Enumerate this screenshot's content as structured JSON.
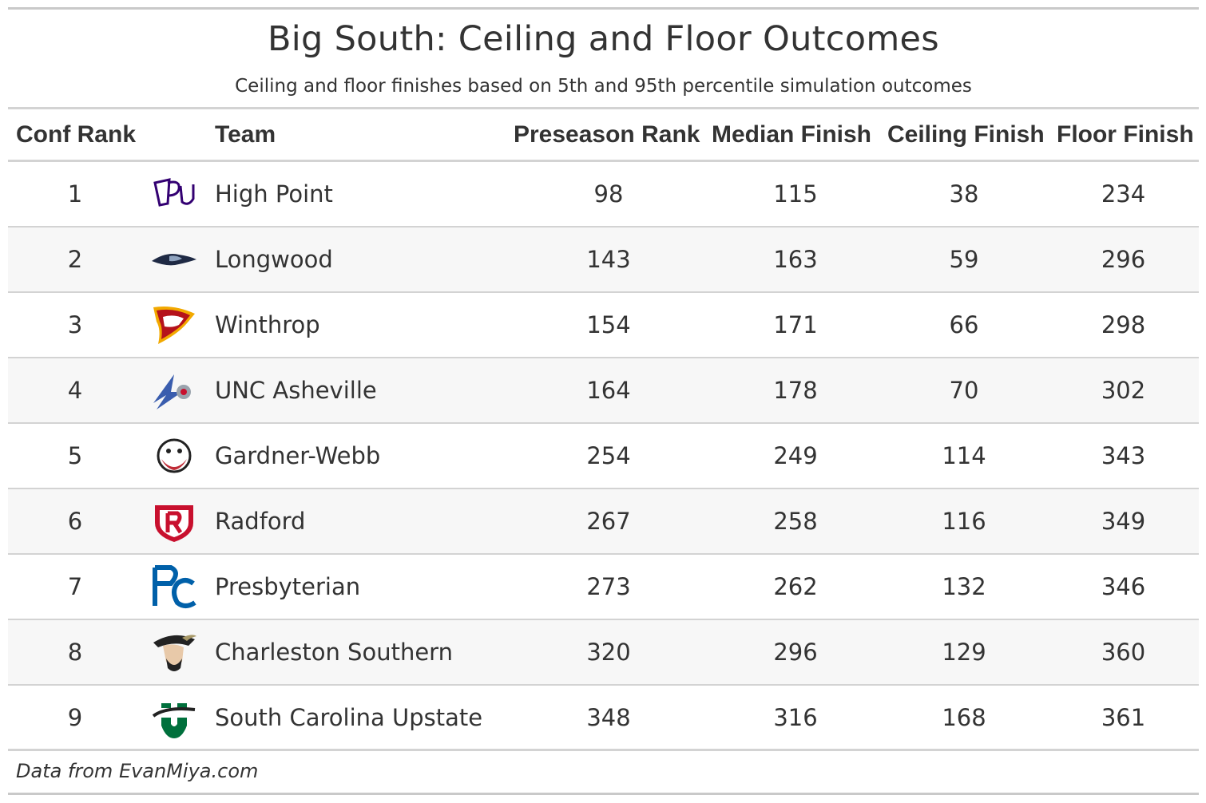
{
  "title": "Big South: Ceiling and Floor Outcomes",
  "subtitle": "Ceiling and floor finishes based on 5th and 95th percentile simulation outcomes",
  "source": "Data from EvanMiya.com",
  "columns": [
    "Conf Rank",
    "Team",
    "Preseason Rank",
    "Median Finish",
    "Ceiling Finish",
    "Floor Finish"
  ],
  "chart_data": {
    "type": "table",
    "title": "Big South: Ceiling and Floor Outcomes",
    "columns": [
      "Conf Rank",
      "Team",
      "Preseason Rank",
      "Median Finish",
      "Ceiling Finish",
      "Floor Finish"
    ],
    "rows": [
      {
        "rank": "1",
        "team": "High Point",
        "preseason": "98",
        "median": "115",
        "ceiling": "38",
        "floor": "234",
        "logo_icon": "high-point-logo-icon",
        "color": "#330072"
      },
      {
        "rank": "2",
        "team": "Longwood",
        "preseason": "143",
        "median": "163",
        "ceiling": "59",
        "floor": "296",
        "logo_icon": "longwood-logo-icon",
        "color": "#1f2a44"
      },
      {
        "rank": "3",
        "team": "Winthrop",
        "preseason": "154",
        "median": "171",
        "ceiling": "66",
        "floor": "298",
        "logo_icon": "winthrop-logo-icon",
        "color": "#b5121b"
      },
      {
        "rank": "4",
        "team": "UNC Asheville",
        "preseason": "164",
        "median": "178",
        "ceiling": "70",
        "floor": "302",
        "logo_icon": "unc-asheville-logo-icon",
        "color": "#3a5dae"
      },
      {
        "rank": "5",
        "team": "Gardner-Webb",
        "preseason": "254",
        "median": "249",
        "ceiling": "114",
        "floor": "343",
        "logo_icon": "gardner-webb-logo-icon",
        "color": "#bf2c37"
      },
      {
        "rank": "6",
        "team": "Radford",
        "preseason": "267",
        "median": "258",
        "ceiling": "116",
        "floor": "349",
        "logo_icon": "radford-logo-icon",
        "color": "#c8102e"
      },
      {
        "rank": "7",
        "team": "Presbyterian",
        "preseason": "273",
        "median": "262",
        "ceiling": "132",
        "floor": "346",
        "logo_icon": "presbyterian-logo-icon",
        "color": "#0060a9"
      },
      {
        "rank": "8",
        "team": "Charleston Southern",
        "preseason": "320",
        "median": "296",
        "ceiling": "129",
        "floor": "360",
        "logo_icon": "charleston-southern-logo-icon",
        "color": "#a89968"
      },
      {
        "rank": "9",
        "team": "South Carolina Upstate",
        "preseason": "348",
        "median": "316",
        "ceiling": "168",
        "floor": "361",
        "logo_icon": "sc-upstate-logo-icon",
        "color": "#00703c"
      }
    ]
  }
}
